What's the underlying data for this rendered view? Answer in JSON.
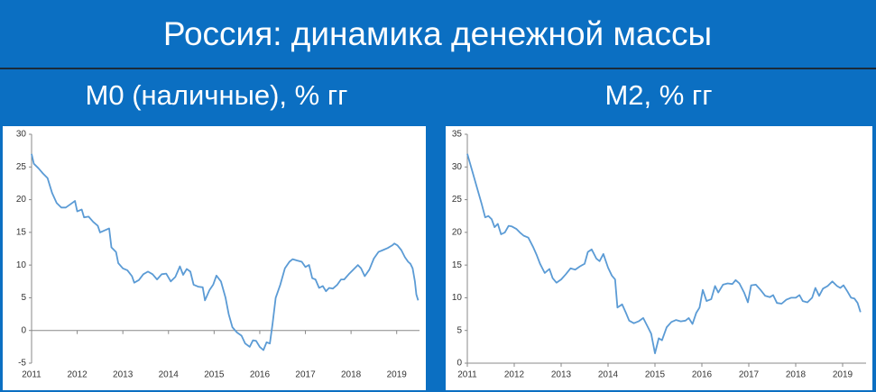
{
  "title": "Россия: динамика денежной массы",
  "chart_data": [
    {
      "type": "line",
      "title": "M0 (наличные), % гг",
      "color": "#5b9bd5",
      "xlim": [
        2011,
        2019.5
      ],
      "xticks": [
        2011,
        2012,
        2013,
        2014,
        2015,
        2016,
        2017,
        2018,
        2019
      ],
      "ylim": [
        -5,
        30
      ],
      "yticks": [
        -5,
        0,
        5,
        10,
        15,
        20,
        25,
        30
      ],
      "x": [
        2011.0,
        2011.05,
        2011.15,
        2011.25,
        2011.35,
        2011.45,
        2011.55,
        2011.65,
        2011.75,
        2011.85,
        2011.95,
        2012.0,
        2012.1,
        2012.15,
        2012.25,
        2012.35,
        2012.45,
        2012.5,
        2012.6,
        2012.7,
        2012.75,
        2012.85,
        2012.9,
        2013.0,
        2013.1,
        2013.2,
        2013.25,
        2013.35,
        2013.45,
        2013.55,
        2013.65,
        2013.75,
        2013.85,
        2013.95,
        2014.05,
        2014.15,
        2014.25,
        2014.32,
        2014.4,
        2014.48,
        2014.55,
        2014.65,
        2014.75,
        2014.8,
        2014.9,
        2014.98,
        2015.05,
        2015.15,
        2015.25,
        2015.32,
        2015.4,
        2015.5,
        2015.6,
        2015.68,
        2015.78,
        2015.85,
        2015.92,
        2016.0,
        2016.08,
        2016.15,
        2016.22,
        2016.28,
        2016.35,
        2016.45,
        2016.55,
        2016.65,
        2016.72,
        2016.82,
        2016.92,
        2017.0,
        2017.08,
        2017.15,
        2017.22,
        2017.3,
        2017.38,
        2017.45,
        2017.52,
        2017.6,
        2017.7,
        2017.78,
        2017.85,
        2017.95,
        2018.05,
        2018.15,
        2018.22,
        2018.3,
        2018.4,
        2018.5,
        2018.6,
        2018.7,
        2018.8,
        2018.9,
        2018.95,
        2019.02,
        2019.1,
        2019.18,
        2019.25,
        2019.3,
        2019.35,
        2019.4,
        2019.43,
        2019.47
      ],
      "values": [
        27,
        25.5,
        24.8,
        24,
        23.3,
        21,
        19.5,
        18.8,
        18.8,
        19.3,
        19.8,
        18.2,
        18.5,
        17.3,
        17.4,
        16.6,
        16,
        15,
        15.3,
        15.6,
        12.7,
        12,
        10.3,
        9.5,
        9.2,
        8.3,
        7.3,
        7.7,
        8.6,
        9.0,
        8.6,
        7.8,
        8.6,
        8.7,
        7.5,
        8.2,
        9.8,
        8.5,
        9.4,
        9.0,
        7.0,
        6.7,
        6.6,
        4.6,
        6.2,
        7.0,
        8.4,
        7.5,
        5.0,
        2.5,
        0.5,
        -0.3,
        -0.8,
        -2.0,
        -2.5,
        -1.5,
        -1.6,
        -2.5,
        -3.0,
        -1.8,
        -2.0,
        1.0,
        5.0,
        7.0,
        9.5,
        10.5,
        10.9,
        10.7,
        10.5,
        9.7,
        10.0,
        8.0,
        7.8,
        6.5,
        6.8,
        6.0,
        6.5,
        6.4,
        7.0,
        7.8,
        7.8,
        8.6,
        9.3,
        10.0,
        9.5,
        8.3,
        9.3,
        11,
        12.0,
        12.3,
        12.6,
        13.0,
        13.3,
        13.0,
        12.3,
        11.2,
        10.5,
        10.2,
        9.5,
        7.5,
        5.5,
        4.6
      ]
    },
    {
      "type": "line",
      "title": "M2, % гг",
      "color": "#5b9bd5",
      "xlim": [
        2011,
        2019.5
      ],
      "xticks": [
        2011,
        2012,
        2013,
        2014,
        2015,
        2016,
        2017,
        2018,
        2019
      ],
      "ylim": [
        0,
        35
      ],
      "yticks": [
        0,
        5,
        10,
        15,
        20,
        25,
        30,
        35
      ],
      "x": [
        2011.0,
        2011.1,
        2011.2,
        2011.3,
        2011.38,
        2011.45,
        2011.52,
        2011.58,
        2011.65,
        2011.72,
        2011.8,
        2011.88,
        2011.95,
        2012.05,
        2012.12,
        2012.2,
        2012.3,
        2012.4,
        2012.48,
        2012.55,
        2012.65,
        2012.75,
        2012.82,
        2012.9,
        2013.0,
        2013.1,
        2013.2,
        2013.3,
        2013.4,
        2013.5,
        2013.57,
        2013.65,
        2013.75,
        2013.82,
        2013.9,
        2014.0,
        2014.08,
        2014.15,
        2014.2,
        2014.3,
        2014.38,
        2014.45,
        2014.55,
        2014.65,
        2014.75,
        2014.85,
        2014.92,
        2015.0,
        2015.08,
        2015.15,
        2015.25,
        2015.35,
        2015.45,
        2015.55,
        2015.65,
        2015.72,
        2015.8,
        2015.88,
        2015.95,
        2016.02,
        2016.1,
        2016.2,
        2016.28,
        2016.35,
        2016.45,
        2016.55,
        2016.65,
        2016.72,
        2016.8,
        2016.9,
        2016.98,
        2017.05,
        2017.15,
        2017.25,
        2017.35,
        2017.45,
        2017.52,
        2017.6,
        2017.7,
        2017.8,
        2017.9,
        2018.0,
        2018.08,
        2018.15,
        2018.25,
        2018.35,
        2018.42,
        2018.5,
        2018.58,
        2018.68,
        2018.78,
        2018.88,
        2018.95,
        2019.02,
        2019.1,
        2019.18,
        2019.25,
        2019.32,
        2019.38
      ],
      "values": [
        32,
        29.5,
        27,
        24.5,
        22.3,
        22.5,
        22,
        20.8,
        21.3,
        19.7,
        20,
        21,
        20.9,
        20.5,
        20,
        19.5,
        19.2,
        17.8,
        16.5,
        15.2,
        13.8,
        14.4,
        13,
        12.3,
        12.8,
        13.6,
        14.5,
        14.3,
        14.8,
        15.2,
        17.0,
        17.4,
        16,
        15.6,
        16.7,
        14.6,
        13.4,
        12.8,
        8.5,
        9.0,
        7.7,
        6.5,
        6.1,
        6.4,
        6.9,
        5.5,
        4.5,
        1.5,
        3.8,
        3.5,
        5.5,
        6.3,
        6.6,
        6.4,
        6.5,
        6.9,
        6.0,
        7.7,
        8.5,
        11.2,
        9.5,
        9.8,
        11.8,
        10.8,
        12.0,
        12.2,
        12.1,
        12.7,
        12.2,
        10.8,
        9.3,
        11.9,
        12.0,
        11.2,
        10.3,
        10.1,
        10.4,
        9.2,
        9.1,
        9.7,
        10.0,
        10.0,
        10.4,
        9.5,
        9.3,
        10.0,
        11.5,
        10.3,
        11.4,
        11.8,
        12.5,
        11.8,
        11.5,
        11.9,
        11.0,
        10.0,
        9.9,
        9.2,
        7.8
      ]
    }
  ]
}
